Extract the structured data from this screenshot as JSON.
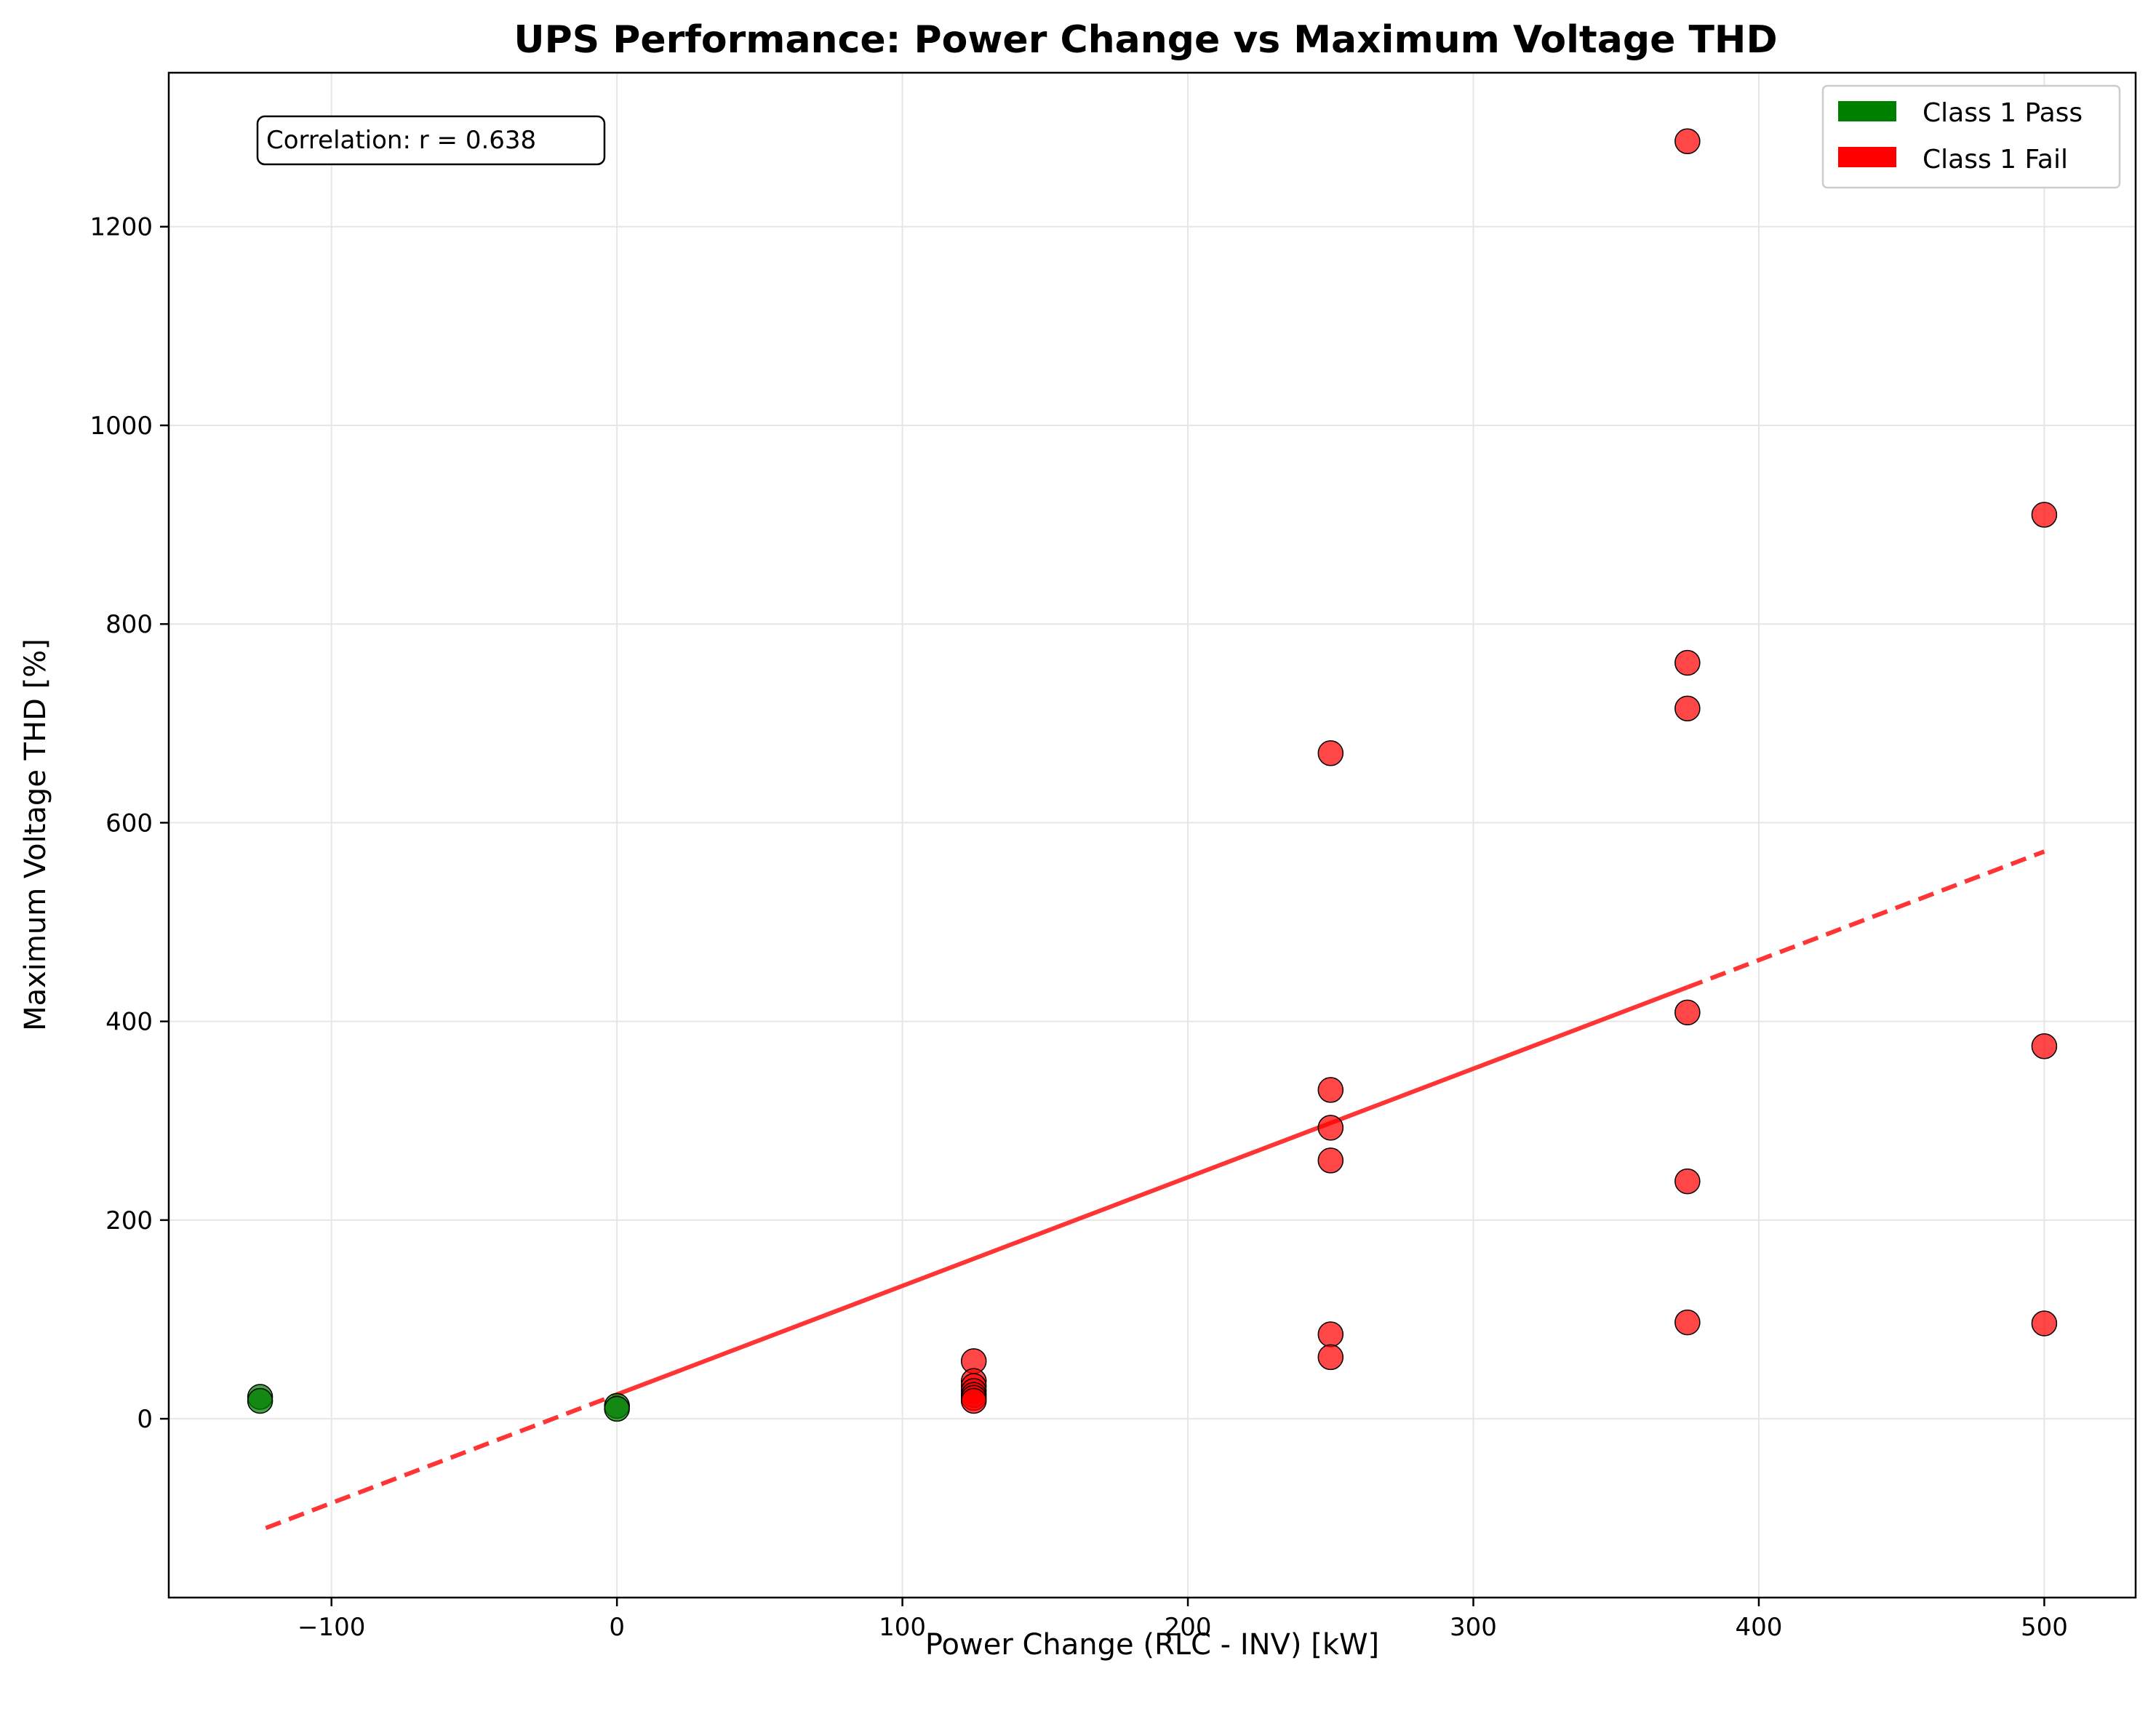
{
  "chart_data": {
    "type": "scatter",
    "title": "UPS Performance: Power Change vs Maximum Voltage THD",
    "xlabel": "Power Change (RLC - INV) [kW]",
    "ylabel": "Maximum Voltage THD [%]",
    "xlim": [
      -157,
      532
    ],
    "ylim": [
      -180,
      1355
    ],
    "xticks": [
      -100,
      0,
      100,
      200,
      300,
      400,
      500
    ],
    "xtick_labels": [
      "−100",
      "0",
      "100",
      "200",
      "300",
      "400",
      "500"
    ],
    "yticks": [
      0,
      200,
      400,
      600,
      800,
      1000,
      1200
    ],
    "ytick_labels": [
      "0",
      "200",
      "400",
      "600",
      "800",
      "1000",
      "1200"
    ],
    "grid": true,
    "legend_position": "top-right",
    "annotation": "Correlation: r = 0.638",
    "colors": {
      "pass": "#008000",
      "fail": "#ff0000",
      "trend": "#ff2a2a"
    },
    "series": [
      {
        "name": "Class 1 Pass",
        "color": "#008000",
        "points": [
          {
            "x": -125,
            "y": 22
          },
          {
            "x": -125,
            "y": 18
          },
          {
            "x": 0,
            "y": 13
          },
          {
            "x": 0,
            "y": 10
          }
        ]
      },
      {
        "name": "Class 1 Fail",
        "color": "#ff0000",
        "points": [
          {
            "x": 125,
            "y": 58
          },
          {
            "x": 125,
            "y": 38
          },
          {
            "x": 125,
            "y": 33
          },
          {
            "x": 125,
            "y": 28
          },
          {
            "x": 125,
            "y": 24
          },
          {
            "x": 125,
            "y": 21
          },
          {
            "x": 125,
            "y": 18
          },
          {
            "x": 250,
            "y": 670
          },
          {
            "x": 250,
            "y": 331
          },
          {
            "x": 250,
            "y": 293
          },
          {
            "x": 250,
            "y": 260
          },
          {
            "x": 250,
            "y": 85
          },
          {
            "x": 250,
            "y": 62
          },
          {
            "x": 375,
            "y": 1286
          },
          {
            "x": 375,
            "y": 761
          },
          {
            "x": 375,
            "y": 715
          },
          {
            "x": 375,
            "y": 409
          },
          {
            "x": 375,
            "y": 239
          },
          {
            "x": 375,
            "y": 97
          },
          {
            "x": 500,
            "y": 910
          },
          {
            "x": 500,
            "y": 375
          },
          {
            "x": 500,
            "y": 96
          }
        ]
      }
    ],
    "trend_line": {
      "x_start": -123,
      "x_end": 500,
      "y_start": -110,
      "y_end": 571,
      "solid_range": [
        0,
        375
      ]
    }
  }
}
